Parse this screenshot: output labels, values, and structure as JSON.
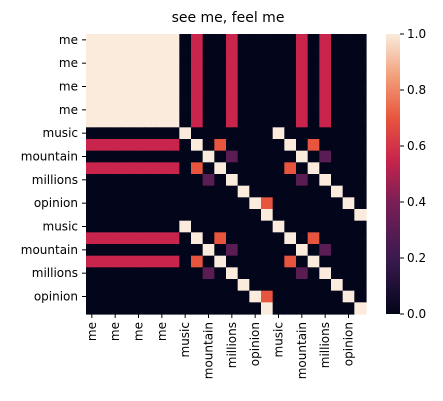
{
  "chart_data": {
    "type": "heatmap",
    "title": "see me, feel me",
    "xlabel": "",
    "ylabel": "",
    "row_tick_labels": [
      "me",
      "me",
      "me",
      "me",
      "music",
      "mountain",
      "millions",
      "opinion",
      "music",
      "mountain",
      "millions",
      "opinion"
    ],
    "col_tick_labels": [
      "me",
      "me",
      "me",
      "me",
      "music",
      "mountain",
      "millions",
      "opinion",
      "music",
      "mountain",
      "millions",
      "opinion"
    ],
    "colorbar": {
      "min": 0.0,
      "max": 1.0,
      "ticks": [
        "0.0",
        "0.2",
        "0.4",
        "0.6",
        "0.8",
        "1.0"
      ]
    },
    "colormap": "rocket",
    "n_rows": 24,
    "n_cols": 24,
    "cells": [
      [
        1,
        1,
        1,
        1,
        1,
        1,
        1,
        1,
        0,
        0.55,
        0,
        0,
        0.55,
        0,
        0,
        0,
        0,
        0,
        0.55,
        0,
        0.55,
        0,
        0,
        0
      ],
      [
        1,
        1,
        1,
        1,
        1,
        1,
        1,
        1,
        0,
        0.55,
        0,
        0,
        0.55,
        0,
        0,
        0,
        0,
        0,
        0.55,
        0,
        0.55,
        0,
        0,
        0
      ],
      [
        1,
        1,
        1,
        1,
        1,
        1,
        1,
        1,
        0,
        0.55,
        0,
        0,
        0.55,
        0,
        0,
        0,
        0,
        0,
        0.55,
        0,
        0.55,
        0,
        0,
        0
      ],
      [
        1,
        1,
        1,
        1,
        1,
        1,
        1,
        1,
        0,
        0.55,
        0,
        0,
        0.55,
        0,
        0,
        0,
        0,
        0,
        0.55,
        0,
        0.55,
        0,
        0,
        0
      ],
      [
        1,
        1,
        1,
        1,
        1,
        1,
        1,
        1,
        0,
        0.55,
        0,
        0,
        0.55,
        0,
        0,
        0,
        0,
        0,
        0.55,
        0,
        0.55,
        0,
        0,
        0
      ],
      [
        1,
        1,
        1,
        1,
        1,
        1,
        1,
        1,
        0,
        0.55,
        0,
        0,
        0.55,
        0,
        0,
        0,
        0,
        0,
        0.55,
        0,
        0.55,
        0,
        0,
        0
      ],
      [
        1,
        1,
        1,
        1,
        1,
        1,
        1,
        1,
        0,
        0.55,
        0,
        0,
        0.55,
        0,
        0,
        0,
        0,
        0,
        0.55,
        0,
        0.55,
        0,
        0,
        0
      ],
      [
        1,
        1,
        1,
        1,
        1,
        1,
        1,
        1,
        0,
        0.55,
        0,
        0,
        0.55,
        0,
        0,
        0,
        0,
        0,
        0.55,
        0,
        0.55,
        0,
        0,
        0
      ],
      [
        0,
        0,
        0,
        0,
        0,
        0,
        0,
        0,
        1,
        0,
        0,
        0,
        0,
        0,
        0,
        0,
        1,
        0,
        0,
        0,
        0,
        0,
        0,
        0
      ],
      [
        0.55,
        0.55,
        0.55,
        0.55,
        0.55,
        0.55,
        0.55,
        0.55,
        0,
        1,
        0,
        0.7,
        0,
        0,
        0,
        0,
        0,
        1,
        0,
        0.7,
        0,
        0,
        0,
        0
      ],
      [
        0,
        0,
        0,
        0,
        0,
        0,
        0,
        0,
        0,
        0,
        1,
        0,
        0.3,
        0,
        0,
        0,
        0,
        0,
        1,
        0,
        0.3,
        0,
        0,
        0
      ],
      [
        0.55,
        0.55,
        0.55,
        0.55,
        0.55,
        0.55,
        0.55,
        0.55,
        0,
        0.7,
        0,
        1,
        0,
        0,
        0,
        0,
        0,
        0.7,
        0,
        1,
        0,
        0,
        0,
        0
      ],
      [
        0,
        0,
        0,
        0,
        0,
        0,
        0,
        0,
        0,
        0,
        0.3,
        0,
        1,
        0,
        0,
        0,
        0,
        0,
        0.3,
        0,
        1,
        0,
        0,
        0
      ],
      [
        0,
        0,
        0,
        0,
        0,
        0,
        0,
        0,
        0,
        0,
        0,
        0,
        0,
        1,
        0,
        0,
        0,
        0,
        0,
        0,
        0,
        1,
        0,
        0
      ],
      [
        0,
        0,
        0,
        0,
        0,
        0,
        0,
        0,
        0,
        0,
        0,
        0,
        0,
        0,
        1,
        0.7,
        0,
        0,
        0,
        0,
        0,
        0,
        1,
        0
      ],
      [
        0,
        0,
        0,
        0,
        0,
        0,
        0,
        0,
        0,
        0,
        0,
        0,
        0,
        0,
        0,
        1,
        0,
        0,
        0,
        0,
        0,
        0,
        0,
        1
      ],
      [
        0,
        0,
        0,
        0,
        0,
        0,
        0,
        0,
        1,
        0,
        0,
        0,
        0,
        0,
        0,
        0,
        1,
        0,
        0,
        0,
        0,
        0,
        0,
        0
      ],
      [
        0.55,
        0.55,
        0.55,
        0.55,
        0.55,
        0.55,
        0.55,
        0.55,
        0,
        1,
        0,
        0.7,
        0,
        0,
        0,
        0,
        0,
        1,
        0,
        0.7,
        0,
        0,
        0,
        0
      ],
      [
        0,
        0,
        0,
        0,
        0,
        0,
        0,
        0,
        0,
        0,
        1,
        0,
        0.3,
        0,
        0,
        0,
        0,
        0,
        1,
        0,
        0.3,
        0,
        0,
        0
      ],
      [
        0.55,
        0.55,
        0.55,
        0.55,
        0.55,
        0.55,
        0.55,
        0.55,
        0,
        0.7,
        0,
        1,
        0,
        0,
        0,
        0,
        0,
        0.7,
        0,
        1,
        0,
        0,
        0,
        0
      ],
      [
        0,
        0,
        0,
        0,
        0,
        0,
        0,
        0,
        0,
        0,
        0.3,
        0,
        1,
        0,
        0,
        0,
        0,
        0,
        0.3,
        0,
        1,
        0,
        0,
        0
      ],
      [
        0,
        0,
        0,
        0,
        0,
        0,
        0,
        0,
        0,
        0,
        0,
        0,
        0,
        1,
        0,
        0,
        0,
        0,
        0,
        0,
        0,
        1,
        0,
        0
      ],
      [
        0,
        0,
        0,
        0,
        0,
        0,
        0,
        0,
        0,
        0,
        0,
        0,
        0,
        0,
        1,
        0.7,
        0,
        0,
        0,
        0,
        0,
        0,
        1,
        0
      ],
      [
        0,
        0,
        0,
        0,
        0,
        0,
        0,
        0,
        0,
        0,
        0,
        0,
        0,
        0,
        0,
        1,
        0,
        0,
        0,
        0,
        0,
        0,
        0,
        1
      ]
    ]
  }
}
